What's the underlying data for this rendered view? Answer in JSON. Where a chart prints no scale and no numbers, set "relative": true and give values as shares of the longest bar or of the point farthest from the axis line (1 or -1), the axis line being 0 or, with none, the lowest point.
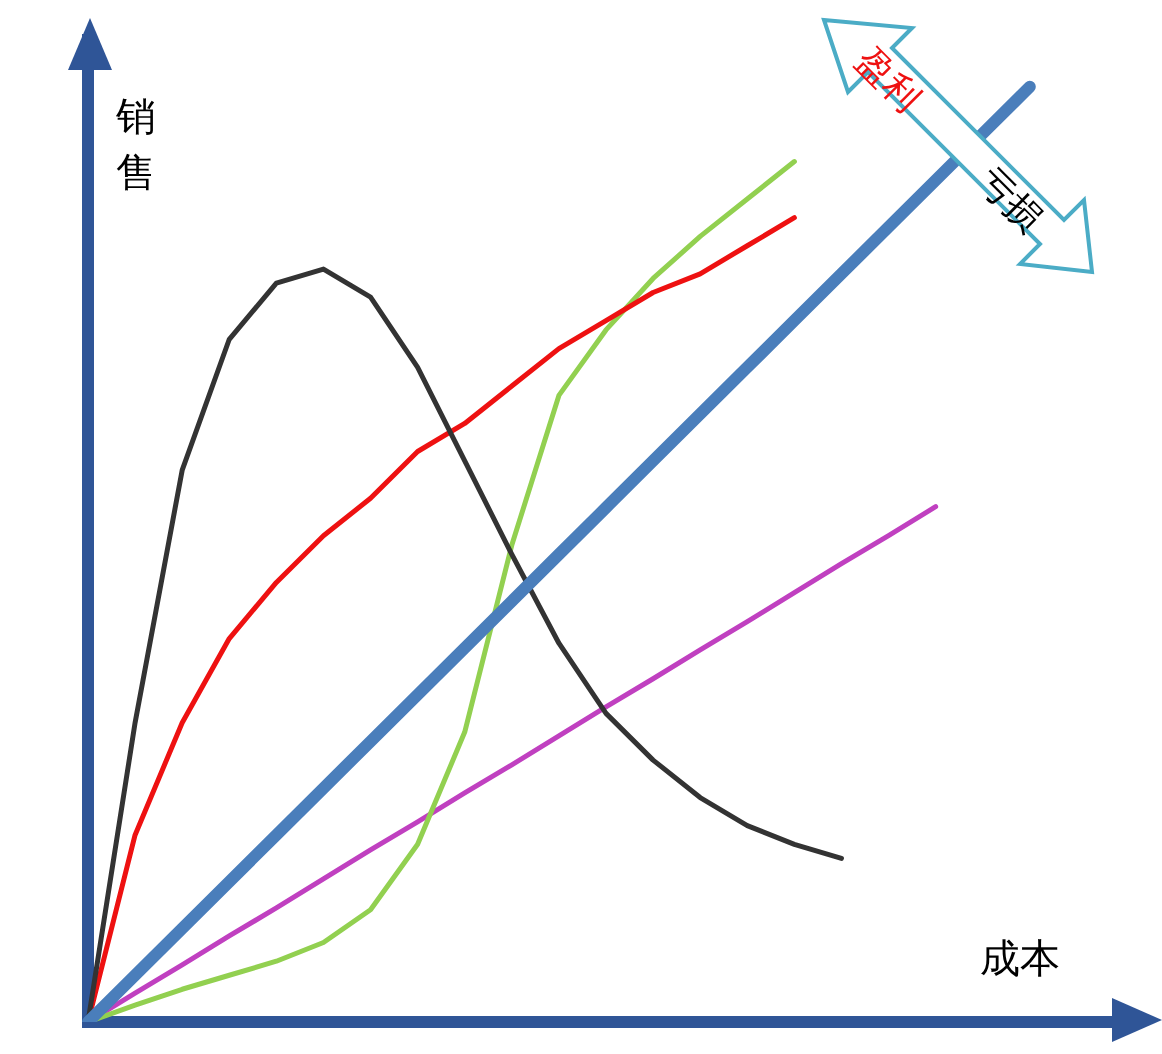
{
  "chart_data": {
    "type": "line",
    "xlabel": "成本",
    "ylabel": "销售",
    "relative": true,
    "grid": false,
    "legend": false,
    "marker": "none",
    "line_style": "solid",
    "annotations": [
      "盈利",
      "亏损"
    ],
    "categories": [
      null,
      null,
      null,
      null,
      null,
      null,
      null,
      null,
      null,
      null,
      null,
      null,
      null,
      null,
      null,
      null,
      null,
      null,
      null,
      null,
      null,
      null,
      null
    ],
    "series": [
      {
        "color": "#4a7ebb",
        "values": [
          0,
          0.05,
          0.1,
          0.15,
          0.2,
          0.25,
          0.3,
          0.35,
          0.4,
          0.45,
          0.5,
          0.55,
          0.6,
          0.65,
          0.7,
          0.75,
          0.8,
          0.85,
          0.9,
          0.95,
          1,
          null,
          null
        ]
      },
      {
        "color": "#333333",
        "values": [
          0,
          0.32,
          0.59,
          0.73,
          0.79,
          0.805,
          0.775,
          0.7,
          0.6,
          0.5,
          0.405,
          0.33,
          0.28,
          0.24,
          0.21,
          0.19,
          0.175,
          null,
          null,
          null,
          null,
          null,
          null
        ]
      },
      {
        "color": "#ee1111",
        "values": [
          0,
          0.2,
          0.32,
          0.41,
          0.47,
          0.52,
          0.56,
          0.61,
          0.64,
          0.68,
          0.72,
          0.75,
          0.78,
          0.8,
          0.83,
          0.86,
          null,
          null,
          null,
          null,
          null,
          null,
          null
        ]
      },
      {
        "color": "#92d050",
        "values": [
          0,
          0.018,
          0.035,
          0.05,
          0.065,
          0.085,
          0.12,
          0.19,
          0.31,
          0.51,
          0.67,
          0.74,
          0.795,
          0.84,
          0.88,
          0.92,
          null,
          null,
          null,
          null,
          null,
          null,
          null
        ]
      },
      {
        "color": "#c040c0",
        "values": [
          0,
          0.031,
          0.061,
          0.092,
          0.122,
          0.153,
          0.184,
          0.214,
          0.245,
          0.275,
          0.306,
          0.337,
          0.367,
          0.398,
          0.428,
          0.459,
          0.49,
          0.52,
          0.551,
          null,
          null,
          null,
          null
        ]
      }
    ]
  }
}
